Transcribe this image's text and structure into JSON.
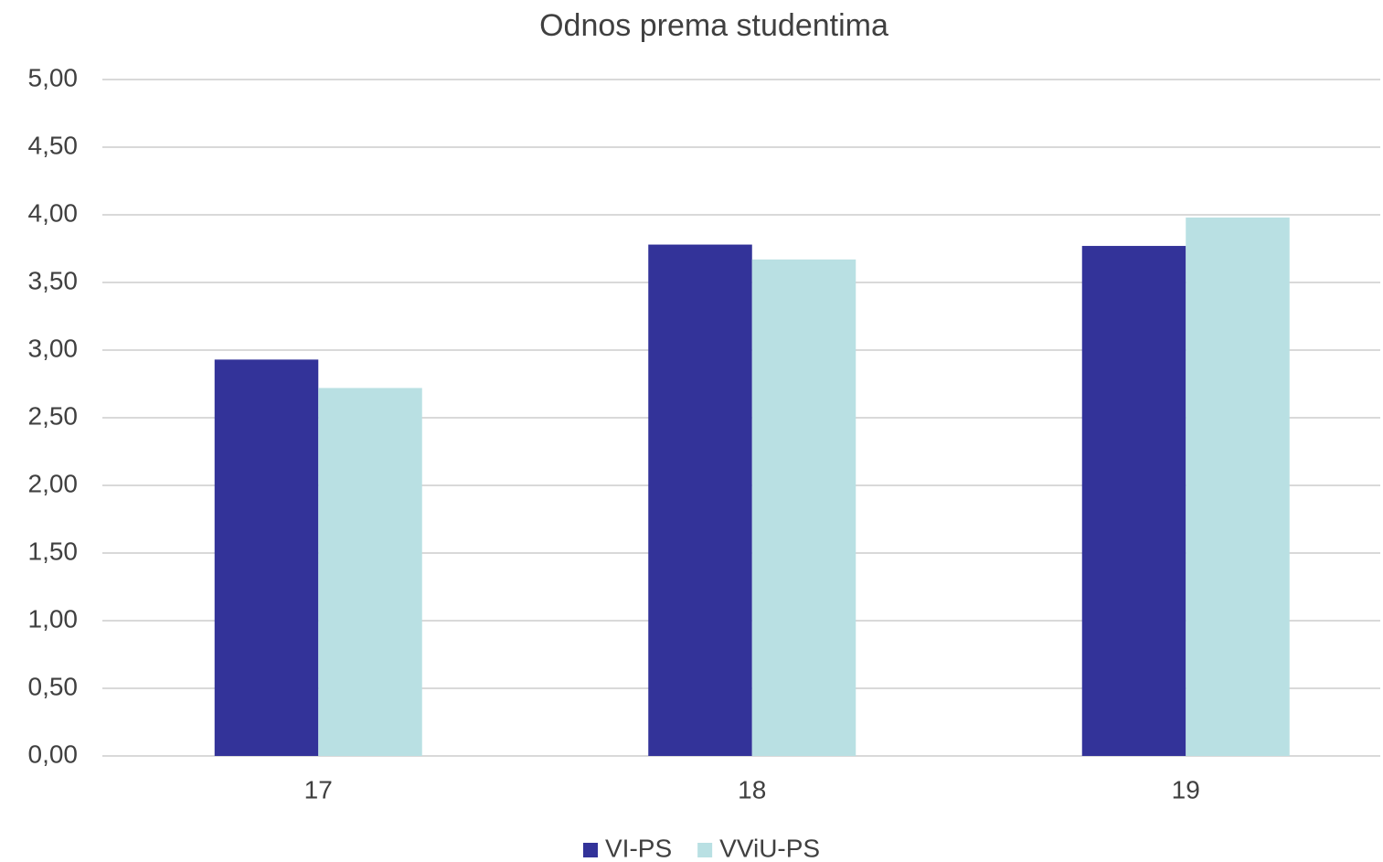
{
  "chart_data": {
    "type": "bar",
    "title": "Odnos prema studentima",
    "categories": [
      "17",
      "18",
      "19"
    ],
    "series": [
      {
        "name": "VI-PS",
        "color": "#333399",
        "values": [
          2.93,
          3.78,
          3.77
        ]
      },
      {
        "name": "VViU-PS",
        "color": "#b9e0e3",
        "values": [
          2.72,
          3.67,
          3.98
        ]
      }
    ],
    "ylim": [
      0,
      5
    ],
    "yticks": [
      {
        "value": 0,
        "label": "0,00"
      },
      {
        "value": 0.5,
        "label": "0,50"
      },
      {
        "value": 1,
        "label": "1,00"
      },
      {
        "value": 1.5,
        "label": "1,50"
      },
      {
        "value": 2,
        "label": "2,00"
      },
      {
        "value": 2.5,
        "label": "2,50"
      },
      {
        "value": 3,
        "label": "3,00"
      },
      {
        "value": 3.5,
        "label": "3,50"
      },
      {
        "value": 4,
        "label": "4,00"
      },
      {
        "value": 4.5,
        "label": "4,50"
      },
      {
        "value": 5,
        "label": "5,00"
      }
    ],
    "grid": true,
    "legend": "bottom"
  }
}
